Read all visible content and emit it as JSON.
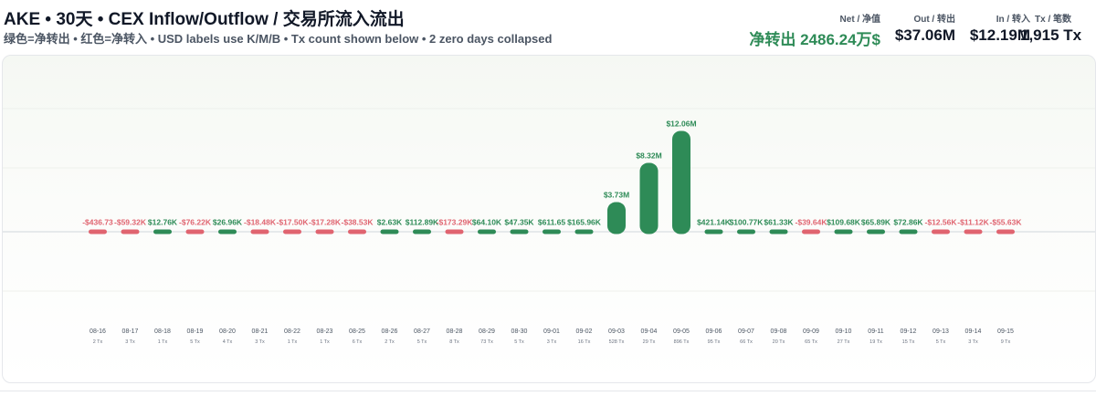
{
  "header": {
    "title": "AKE • 30天 • CEX Inflow/Outflow / 交易所流入流出",
    "subtitle": "绿色=净转出 • 红色=净转入 • USD labels use K/M/B • Tx count shown below • 2 zero days collapsed"
  },
  "stats": {
    "net_label": "Net / 净值",
    "net_value": "净转出 2486.24万$",
    "out_label": "Out / 转出",
    "out_value": "$37.06M",
    "in_label": "In / 转入",
    "in_value": "$12.19M",
    "tx_label": "Tx / 笔数",
    "tx_value": "1,915 Tx"
  },
  "colors": {
    "outflow": "#2e8b57",
    "inflow": "#e06470",
    "baseline": "#d1d5db",
    "axis_text": "#4b5563"
  },
  "chart_data": {
    "type": "bar",
    "categories": [
      "08-16",
      "08-17",
      "08-18",
      "08-19",
      "08-20",
      "08-21",
      "08-22",
      "08-23",
      "08-25",
      "08-26",
      "08-27",
      "08-28",
      "08-29",
      "08-30",
      "09-01",
      "09-02",
      "09-03",
      "09-04",
      "09-05",
      "09-06",
      "09-07",
      "09-08",
      "09-09",
      "09-10",
      "09-11",
      "09-12",
      "09-13",
      "09-14",
      "09-15"
    ],
    "values": [
      -436.73,
      -59320,
      12760,
      -76220,
      26960,
      -18480,
      -17500,
      -17280,
      -38530,
      2630,
      112890,
      -173290,
      64100,
      47350,
      611.65,
      165960,
      3730000,
      8320000,
      12060000,
      421140,
      100770,
      61330,
      -39640,
      109680,
      65890,
      72860,
      -12560,
      -11120,
      -55630
    ],
    "labels": [
      "-$436.73",
      "-$59.32K",
      "$12.76K",
      "-$76.22K",
      "$26.96K",
      "-$18.48K",
      "-$17.50K",
      "-$17.28K",
      "-$38.53K",
      "$2.63K",
      "$112.89K",
      "-$173.29K",
      "$64.10K",
      "$47.35K",
      "$611.65",
      "$165.96K",
      "$3.73M",
      "$8.32M",
      "$12.06M",
      "$421.14K",
      "$100.77K",
      "$61.33K",
      "-$39.64K",
      "$109.68K",
      "$65.89K",
      "$72.86K",
      "-$12.56K",
      "-$11.12K",
      "-$55.63K"
    ],
    "tx_counts": [
      "2 Tx",
      "3 Tx",
      "1 Tx",
      "5 Tx",
      "4 Tx",
      "3 Tx",
      "1 Tx",
      "1 Tx",
      "6 Tx",
      "2 Tx",
      "5 Tx",
      "8 Tx",
      "73 Tx",
      "5 Tx",
      "3 Tx",
      "16 Tx",
      "528 Tx",
      "29 Tx",
      "896 Tx",
      "95 Tx",
      "66 Tx",
      "20 Tx",
      "65 Tx",
      "27 Tx",
      "19 Tx",
      "15 Tx",
      "5 Tx",
      "3 Tx",
      "9 Tx"
    ],
    "ylim": [
      -13000000,
      13000000
    ],
    "grid": true
  }
}
